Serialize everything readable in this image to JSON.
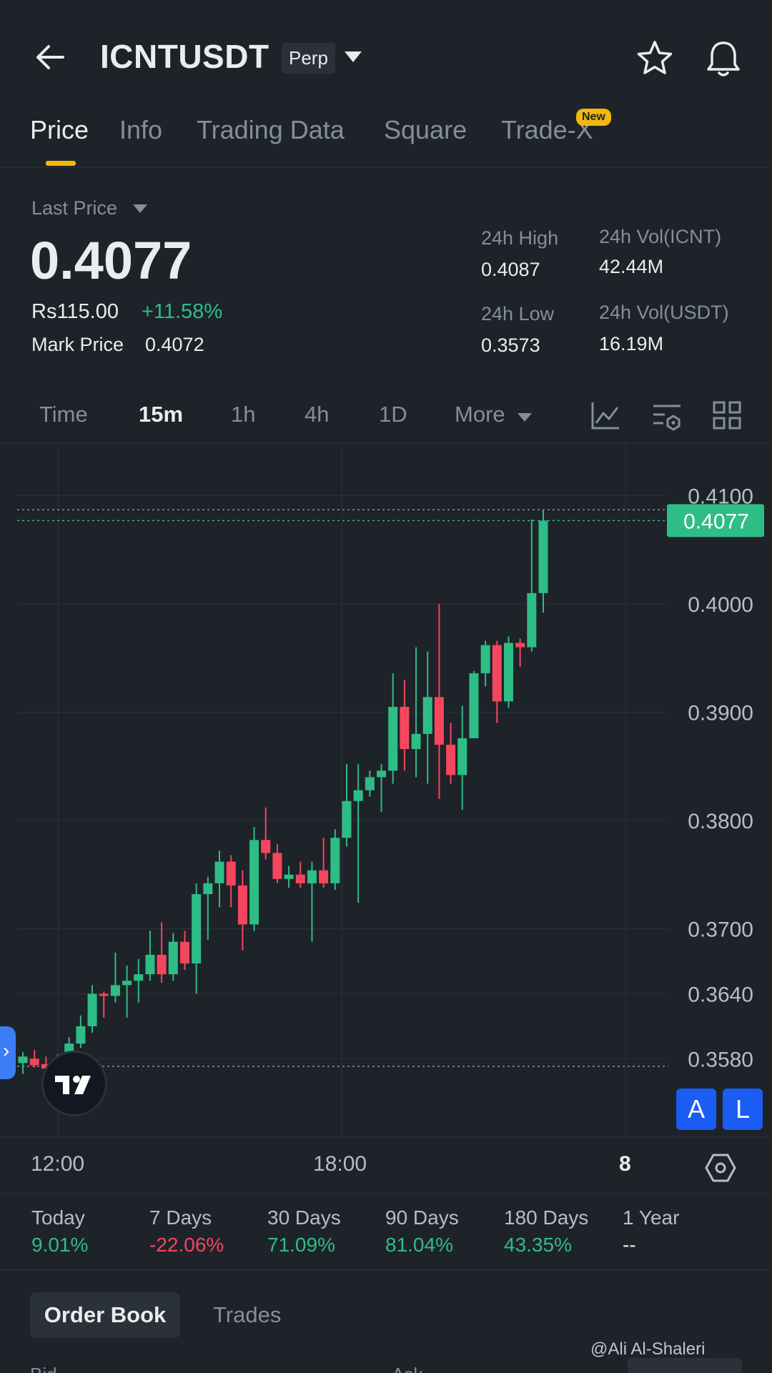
{
  "header": {
    "symbol": "ICNTUSDT",
    "contract_type": "Perp"
  },
  "tabs": [
    {
      "label": "Price",
      "active": true
    },
    {
      "label": "Info"
    },
    {
      "label": "Trading Data"
    },
    {
      "label": "Square"
    },
    {
      "label": "Trade-X",
      "badge": "New"
    }
  ],
  "price": {
    "last_price_label": "Last Price",
    "last_price": "0.4077",
    "fiat_value": "Rs115.00",
    "change_pct": "+11.58%",
    "mark_price_label": "Mark Price",
    "mark_price": "0.4072"
  },
  "stats": {
    "high_label": "24h High",
    "high": "0.4087",
    "low_label": "24h Low",
    "low": "0.3573",
    "vol_base_label": "24h Vol(ICNT)",
    "vol_base": "42.44M",
    "vol_quote_label": "24h Vol(USDT)",
    "vol_quote": "16.19M"
  },
  "intervals": {
    "time": "Time",
    "m15": "15m",
    "h1": "1h",
    "h4": "4h",
    "d1": "1D",
    "more": "More",
    "active": "15m"
  },
  "chart_data": {
    "type": "candlestick",
    "interval": "15m",
    "y_ticks": [
      "0.4100",
      "0.4000",
      "0.3900",
      "0.3800",
      "0.3700",
      "0.3640",
      "0.3580"
    ],
    "x_ticks": [
      "12:00",
      "18:00",
      "8"
    ],
    "current_price_label": "0.4077",
    "colors": {
      "up": "#2ebd85",
      "down": "#f6465d",
      "price_line": "#2ebd85"
    },
    "candles": [
      {
        "o": 0.3576,
        "h": 0.3586,
        "l": 0.3566,
        "c": 0.3582
      },
      {
        "o": 0.358,
        "h": 0.3588,
        "l": 0.3572,
        "c": 0.3574
      },
      {
        "o": 0.3575,
        "h": 0.3582,
        "l": 0.3564,
        "c": 0.3571
      },
      {
        "o": 0.3571,
        "h": 0.3584,
        "l": 0.3568,
        "c": 0.358
      },
      {
        "o": 0.358,
        "h": 0.36,
        "l": 0.3576,
        "c": 0.3594
      },
      {
        "o": 0.3594,
        "h": 0.362,
        "l": 0.359,
        "c": 0.361
      },
      {
        "o": 0.361,
        "h": 0.3648,
        "l": 0.3604,
        "c": 0.364
      },
      {
        "o": 0.364,
        "h": 0.3642,
        "l": 0.3618,
        "c": 0.3638
      },
      {
        "o": 0.3638,
        "h": 0.3678,
        "l": 0.3632,
        "c": 0.3648
      },
      {
        "o": 0.3648,
        "h": 0.3666,
        "l": 0.3618,
        "c": 0.3652
      },
      {
        "o": 0.3652,
        "h": 0.3672,
        "l": 0.3632,
        "c": 0.3658
      },
      {
        "o": 0.3658,
        "h": 0.3698,
        "l": 0.3652,
        "c": 0.3676
      },
      {
        "o": 0.3676,
        "h": 0.3706,
        "l": 0.365,
        "c": 0.3658
      },
      {
        "o": 0.3658,
        "h": 0.3696,
        "l": 0.3652,
        "c": 0.3688
      },
      {
        "o": 0.3688,
        "h": 0.3698,
        "l": 0.3662,
        "c": 0.3668
      },
      {
        "o": 0.3668,
        "h": 0.3742,
        "l": 0.364,
        "c": 0.3732
      },
      {
        "o": 0.3732,
        "h": 0.3748,
        "l": 0.369,
        "c": 0.3742
      },
      {
        "o": 0.3742,
        "h": 0.3772,
        "l": 0.372,
        "c": 0.3762
      },
      {
        "o": 0.3762,
        "h": 0.3768,
        "l": 0.372,
        "c": 0.374
      },
      {
        "o": 0.374,
        "h": 0.3754,
        "l": 0.368,
        "c": 0.3704
      },
      {
        "o": 0.3704,
        "h": 0.3794,
        "l": 0.3698,
        "c": 0.3782
      },
      {
        "o": 0.3782,
        "h": 0.3812,
        "l": 0.3764,
        "c": 0.377
      },
      {
        "o": 0.377,
        "h": 0.3778,
        "l": 0.3742,
        "c": 0.3746
      },
      {
        "o": 0.3746,
        "h": 0.3758,
        "l": 0.3738,
        "c": 0.375
      },
      {
        "o": 0.375,
        "h": 0.3762,
        "l": 0.3738,
        "c": 0.3742
      },
      {
        "o": 0.3742,
        "h": 0.3762,
        "l": 0.3688,
        "c": 0.3754
      },
      {
        "o": 0.3754,
        "h": 0.3784,
        "l": 0.3738,
        "c": 0.3742
      },
      {
        "o": 0.3742,
        "h": 0.3792,
        "l": 0.3736,
        "c": 0.3784
      },
      {
        "o": 0.3784,
        "h": 0.3852,
        "l": 0.3776,
        "c": 0.3818
      },
      {
        "o": 0.3818,
        "h": 0.3852,
        "l": 0.3724,
        "c": 0.3828
      },
      {
        "o": 0.3828,
        "h": 0.3846,
        "l": 0.3822,
        "c": 0.384
      },
      {
        "o": 0.384,
        "h": 0.3852,
        "l": 0.3808,
        "c": 0.3846
      },
      {
        "o": 0.3846,
        "h": 0.3936,
        "l": 0.3834,
        "c": 0.3905
      },
      {
        "o": 0.3905,
        "h": 0.393,
        "l": 0.3846,
        "c": 0.3866
      },
      {
        "o": 0.3866,
        "h": 0.396,
        "l": 0.384,
        "c": 0.388
      },
      {
        "o": 0.388,
        "h": 0.3956,
        "l": 0.3834,
        "c": 0.3914
      },
      {
        "o": 0.3914,
        "h": 0.4,
        "l": 0.382,
        "c": 0.387
      },
      {
        "o": 0.387,
        "h": 0.389,
        "l": 0.3834,
        "c": 0.3842
      },
      {
        "o": 0.3842,
        "h": 0.3906,
        "l": 0.381,
        "c": 0.3876
      },
      {
        "o": 0.3876,
        "h": 0.3938,
        "l": 0.3876,
        "c": 0.3936
      },
      {
        "o": 0.3936,
        "h": 0.3966,
        "l": 0.3924,
        "c": 0.3962
      },
      {
        "o": 0.3962,
        "h": 0.3966,
        "l": 0.389,
        "c": 0.391
      },
      {
        "o": 0.391,
        "h": 0.397,
        "l": 0.3904,
        "c": 0.3964
      },
      {
        "o": 0.3964,
        "h": 0.3968,
        "l": 0.3942,
        "c": 0.396
      },
      {
        "o": 0.396,
        "h": 0.4078,
        "l": 0.3956,
        "c": 0.401
      },
      {
        "o": 0.401,
        "h": 0.4087,
        "l": 0.3992,
        "c": 0.4077
      }
    ]
  },
  "time_axis": {
    "t1": "12:00",
    "t2": "18:00",
    "t3": "8"
  },
  "chart_buttons": {
    "a": "A",
    "l": "L",
    "handle": "›"
  },
  "performance": [
    {
      "label": "Today",
      "value": "9.01%",
      "dir": "up"
    },
    {
      "label": "7 Days",
      "value": "-22.06%",
      "dir": "down"
    },
    {
      "label": "30 Days",
      "value": "71.09%",
      "dir": "up"
    },
    {
      "label": "90 Days",
      "value": "81.04%",
      "dir": "up"
    },
    {
      "label": "180 Days",
      "value": "43.35%",
      "dir": "up"
    },
    {
      "label": "1 Year",
      "value": "--",
      "dir": "none"
    }
  ],
  "bottom_tabs": {
    "order_book": "Order Book",
    "trades": "Trades"
  },
  "watermark": "@Ali Al-Shaleri",
  "partial": {
    "left": "Bid",
    "right": "Ask"
  },
  "colors": {
    "up": "#2ebd85",
    "down": "#f6465d",
    "accent": "#f0b90b",
    "bg": "#1e2329"
  }
}
